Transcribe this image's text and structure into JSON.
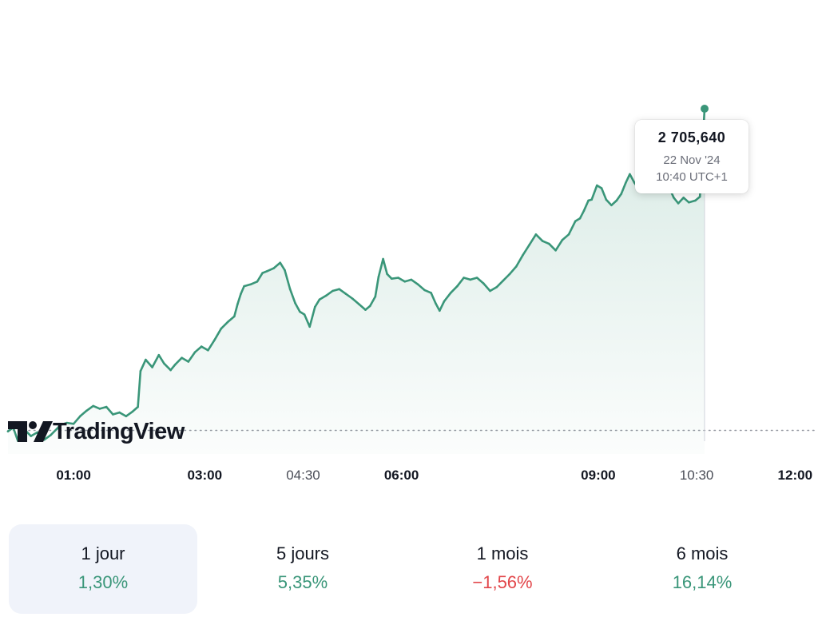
{
  "chart_data": {
    "type": "area",
    "x_tick_labels": [
      {
        "label": "01:00",
        "t": 1.0,
        "bold": true
      },
      {
        "label": "03:00",
        "t": 3.0,
        "bold": true
      },
      {
        "label": "04:30",
        "t": 4.5,
        "bold": false
      },
      {
        "label": "06:00",
        "t": 6.0,
        "bold": true
      },
      {
        "label": "09:00",
        "t": 9.0,
        "bold": true
      },
      {
        "label": "10:30",
        "t": 10.5,
        "bold": false
      },
      {
        "label": "12:00",
        "t": 12.0,
        "bold": true
      }
    ],
    "x_range": [
      0.0,
      12.35
    ],
    "series": [
      {
        "color": "#3a9679",
        "points": [
          [
            0.0,
            2671400
          ],
          [
            0.08,
            2671800
          ],
          [
            0.15,
            2670400
          ],
          [
            0.25,
            2671600
          ],
          [
            0.35,
            2670900
          ],
          [
            0.45,
            2671300
          ],
          [
            0.55,
            2670500
          ],
          [
            0.65,
            2671000
          ],
          [
            0.75,
            2671700
          ],
          [
            0.8,
            2672100
          ],
          [
            0.9,
            2672300
          ],
          [
            1.0,
            2672200
          ],
          [
            1.1,
            2673000
          ],
          [
            1.2,
            2673600
          ],
          [
            1.3,
            2674100
          ],
          [
            1.4,
            2673800
          ],
          [
            1.5,
            2674000
          ],
          [
            1.6,
            2673200
          ],
          [
            1.7,
            2673400
          ],
          [
            1.8,
            2673000
          ],
          [
            1.9,
            2673500
          ],
          [
            1.98,
            2674000
          ],
          [
            2.02,
            2677800
          ],
          [
            2.1,
            2679000
          ],
          [
            2.2,
            2678200
          ],
          [
            2.3,
            2679500
          ],
          [
            2.38,
            2678600
          ],
          [
            2.48,
            2677900
          ],
          [
            2.55,
            2678500
          ],
          [
            2.65,
            2679200
          ],
          [
            2.75,
            2678800
          ],
          [
            2.85,
            2679800
          ],
          [
            2.95,
            2680400
          ],
          [
            3.05,
            2680000
          ],
          [
            3.15,
            2681100
          ],
          [
            3.25,
            2682300
          ],
          [
            3.35,
            2683000
          ],
          [
            3.45,
            2683600
          ],
          [
            3.5,
            2684900
          ],
          [
            3.55,
            2686000
          ],
          [
            3.6,
            2686800
          ],
          [
            3.7,
            2687000
          ],
          [
            3.8,
            2687300
          ],
          [
            3.88,
            2688200
          ],
          [
            3.95,
            2688400
          ],
          [
            4.05,
            2688700
          ],
          [
            4.15,
            2689300
          ],
          [
            4.22,
            2688500
          ],
          [
            4.3,
            2686500
          ],
          [
            4.38,
            2685000
          ],
          [
            4.45,
            2684100
          ],
          [
            4.52,
            2683800
          ],
          [
            4.6,
            2682500
          ],
          [
            4.68,
            2684600
          ],
          [
            4.75,
            2685400
          ],
          [
            4.85,
            2685800
          ],
          [
            4.95,
            2686300
          ],
          [
            5.05,
            2686500
          ],
          [
            5.15,
            2686000
          ],
          [
            5.25,
            2685500
          ],
          [
            5.35,
            2684900
          ],
          [
            5.45,
            2684300
          ],
          [
            5.52,
            2684700
          ],
          [
            5.6,
            2685700
          ],
          [
            5.65,
            2687800
          ],
          [
            5.72,
            2689700
          ],
          [
            5.78,
            2688100
          ],
          [
            5.85,
            2687600
          ],
          [
            5.95,
            2687700
          ],
          [
            6.05,
            2687300
          ],
          [
            6.15,
            2687500
          ],
          [
            6.25,
            2687000
          ],
          [
            6.35,
            2686400
          ],
          [
            6.45,
            2686100
          ],
          [
            6.52,
            2685000
          ],
          [
            6.58,
            2684200
          ],
          [
            6.65,
            2685200
          ],
          [
            6.75,
            2686100
          ],
          [
            6.85,
            2686800
          ],
          [
            6.95,
            2687700
          ],
          [
            7.05,
            2687500
          ],
          [
            7.15,
            2687700
          ],
          [
            7.25,
            2687100
          ],
          [
            7.35,
            2686300
          ],
          [
            7.45,
            2686700
          ],
          [
            7.55,
            2687400
          ],
          [
            7.65,
            2688100
          ],
          [
            7.75,
            2688900
          ],
          [
            7.85,
            2690100
          ],
          [
            7.95,
            2691200
          ],
          [
            8.05,
            2692300
          ],
          [
            8.15,
            2691600
          ],
          [
            8.25,
            2691300
          ],
          [
            8.35,
            2690600
          ],
          [
            8.45,
            2691700
          ],
          [
            8.55,
            2692300
          ],
          [
            8.65,
            2693700
          ],
          [
            8.72,
            2694000
          ],
          [
            8.78,
            2694800
          ],
          [
            8.85,
            2695900
          ],
          [
            8.9,
            2696000
          ],
          [
            8.98,
            2697500
          ],
          [
            9.05,
            2697200
          ],
          [
            9.12,
            2696000
          ],
          [
            9.2,
            2695400
          ],
          [
            9.28,
            2695900
          ],
          [
            9.35,
            2696600
          ],
          [
            9.42,
            2697800
          ],
          [
            9.48,
            2698700
          ],
          [
            9.55,
            2697800
          ],
          [
            9.62,
            2697100
          ],
          [
            9.7,
            2697200
          ],
          [
            9.78,
            2697700
          ],
          [
            9.85,
            2698200
          ],
          [
            9.92,
            2697800
          ],
          [
            10.0,
            2697300
          ],
          [
            10.08,
            2697300
          ],
          [
            10.15,
            2696200
          ],
          [
            10.22,
            2695600
          ],
          [
            10.3,
            2696200
          ],
          [
            10.38,
            2695700
          ],
          [
            10.48,
            2695900
          ],
          [
            10.55,
            2696300
          ],
          [
            10.62,
            2705640
          ]
        ]
      }
    ],
    "reference_level": 2671500,
    "tooltip": {
      "price": "2 705,640",
      "date": "22 Nov '24",
      "time": "10:40 UTC+1"
    },
    "crosshair_t": 10.62
  },
  "watermark": {
    "text": "TradingView"
  },
  "colors": {
    "up": "#3a9679",
    "down": "#e2464a",
    "axis_text": "#131722",
    "muted": "#6a6d78"
  },
  "periods": [
    {
      "label": "1 jour",
      "change": "1,30%",
      "direction": "up",
      "active": true
    },
    {
      "label": "5 jours",
      "change": "5,35%",
      "direction": "up",
      "active": false
    },
    {
      "label": "1 mois",
      "change": "−1,56%",
      "direction": "down",
      "active": false
    },
    {
      "label": "6 mois",
      "change": "16,14%",
      "direction": "up",
      "active": false
    }
  ]
}
